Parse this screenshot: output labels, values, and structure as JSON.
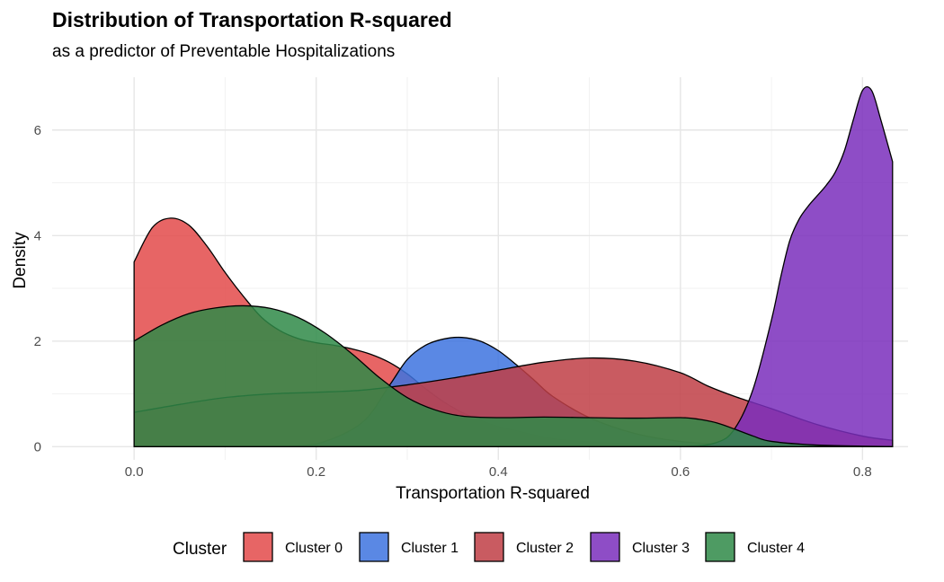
{
  "chart_data": {
    "type": "area",
    "title": "Distribution of Transportation R-squared",
    "subtitle": "as a predictor of Preventable Hospitalizations",
    "xlabel": "Transportation R-squared",
    "ylabel": "Density",
    "xlim": [
      -0.09,
      0.85
    ],
    "ylim": [
      -0.25,
      7.0
    ],
    "x_ticks": [
      0.0,
      0.2,
      0.4,
      0.6,
      0.8
    ],
    "x_tick_labels": [
      "0.0",
      "0.2",
      "0.4",
      "0.6",
      "0.8"
    ],
    "y_ticks": [
      0,
      2,
      4,
      6
    ],
    "y_tick_labels": [
      "0",
      "2",
      "4",
      "6"
    ],
    "grid": true,
    "legend": {
      "title": "Cluster",
      "position": "bottom"
    },
    "series": [
      {
        "name": "Cluster 0",
        "color": "#E34A4A",
        "x": [
          0.0,
          0.02,
          0.04,
          0.06,
          0.08,
          0.1,
          0.12,
          0.14,
          0.16,
          0.18,
          0.2,
          0.22,
          0.24,
          0.26,
          0.28,
          0.3,
          0.32,
          0.34,
          0.36,
          0.38,
          0.4,
          0.42,
          0.44,
          0.46,
          0.5,
          0.55,
          0.6,
          0.65,
          0.7,
          0.75,
          0.8,
          0.833
        ],
        "y": [
          3.5,
          4.15,
          4.33,
          4.2,
          3.8,
          3.3,
          2.85,
          2.45,
          2.2,
          2.05,
          1.97,
          1.92,
          1.85,
          1.75,
          1.6,
          1.38,
          1.1,
          0.85,
          0.65,
          0.5,
          0.38,
          0.3,
          0.22,
          0.15,
          0.09,
          0.05,
          0.03,
          0.02,
          0.01,
          0.01,
          0.0,
          0.0
        ]
      },
      {
        "name": "Cluster 1",
        "color": "#3D73DF",
        "x": [
          0.0,
          0.05,
          0.1,
          0.15,
          0.2,
          0.25,
          0.28,
          0.3,
          0.32,
          0.34,
          0.36,
          0.38,
          0.4,
          0.42,
          0.44,
          0.46,
          0.5,
          0.55,
          0.6,
          0.65,
          0.7,
          0.75,
          0.8,
          0.833
        ],
        "y": [
          0.0,
          0.0,
          0.0,
          0.0,
          0.05,
          0.45,
          1.15,
          1.65,
          1.92,
          2.04,
          2.07,
          2.0,
          1.82,
          1.55,
          1.25,
          0.95,
          0.55,
          0.25,
          0.1,
          0.04,
          0.02,
          0.01,
          0.0,
          0.0
        ]
      },
      {
        "name": "Cluster 2",
        "color": "#C03E45",
        "x": [
          0.0,
          0.05,
          0.1,
          0.15,
          0.2,
          0.25,
          0.3,
          0.35,
          0.4,
          0.45,
          0.5,
          0.55,
          0.6,
          0.63,
          0.66,
          0.7,
          0.75,
          0.8,
          0.833
        ],
        "y": [
          0.65,
          0.8,
          0.93,
          1.0,
          1.03,
          1.07,
          1.17,
          1.3,
          1.45,
          1.6,
          1.68,
          1.62,
          1.4,
          1.15,
          0.95,
          0.72,
          0.42,
          0.2,
          0.12
        ]
      },
      {
        "name": "Cluster 3",
        "color": "#7A2EBC",
        "x": [
          0.0,
          0.1,
          0.2,
          0.3,
          0.4,
          0.5,
          0.6,
          0.64,
          0.66,
          0.68,
          0.7,
          0.71,
          0.72,
          0.73,
          0.74,
          0.75,
          0.76,
          0.77,
          0.78,
          0.79,
          0.8,
          0.81,
          0.82,
          0.833
        ],
        "y": [
          0.0,
          0.0,
          0.0,
          0.0,
          0.0,
          0.0,
          0.0,
          0.08,
          0.35,
          1.1,
          2.4,
          3.2,
          3.9,
          4.3,
          4.55,
          4.75,
          4.95,
          5.2,
          5.6,
          6.2,
          6.75,
          6.75,
          6.2,
          5.4
        ]
      },
      {
        "name": "Cluster 4",
        "color": "#2F8A48",
        "x": [
          0.0,
          0.03,
          0.06,
          0.09,
          0.12,
          0.15,
          0.18,
          0.21,
          0.24,
          0.27,
          0.3,
          0.33,
          0.36,
          0.4,
          0.45,
          0.5,
          0.55,
          0.6,
          0.62,
          0.64,
          0.66,
          0.68,
          0.7,
          0.75,
          0.8,
          0.833
        ],
        "y": [
          2.0,
          2.3,
          2.52,
          2.63,
          2.67,
          2.62,
          2.45,
          2.15,
          1.75,
          1.3,
          0.93,
          0.7,
          0.58,
          0.55,
          0.56,
          0.55,
          0.54,
          0.55,
          0.52,
          0.45,
          0.33,
          0.2,
          0.1,
          0.03,
          0.01,
          0.0
        ]
      }
    ]
  }
}
